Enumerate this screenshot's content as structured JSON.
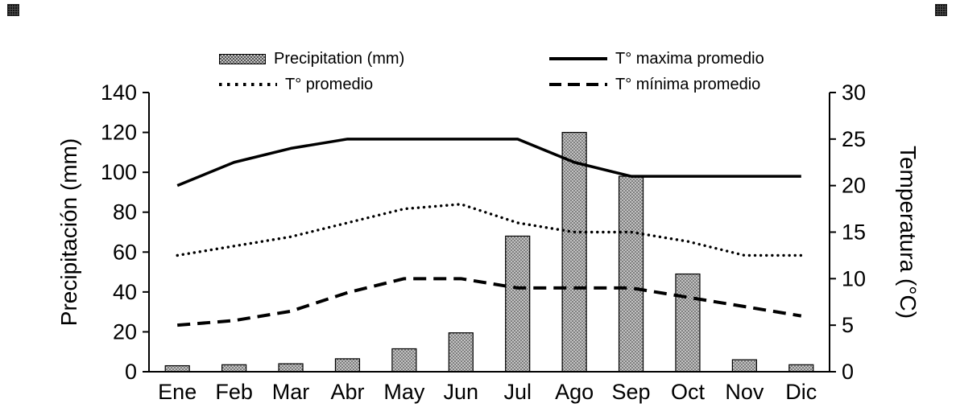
{
  "chart_data": {
    "type": "bar",
    "categories": [
      "Ene",
      "Feb",
      "Mar",
      "Abr",
      "May",
      "Jun",
      "Jul",
      "Ago",
      "Sep",
      "Oct",
      "Nov",
      "Dic"
    ],
    "bar_series": {
      "name": "Precipitation (mm)",
      "axis": "left",
      "values": [
        3,
        3.5,
        4,
        6.5,
        11.5,
        19.5,
        68,
        120,
        98,
        49,
        6,
        3.5
      ]
    },
    "line_series": [
      {
        "name": "T° maxima promedio",
        "style": "solid",
        "axis": "right",
        "values": [
          20,
          22.5,
          24,
          25,
          25,
          25,
          25,
          22.5,
          21,
          21,
          21,
          21
        ]
      },
      {
        "name": "T° promedio",
        "style": "dotted",
        "axis": "right",
        "values": [
          12.5,
          13.5,
          14.5,
          16,
          17.5,
          18,
          16,
          15,
          15,
          14,
          12.5,
          12.5
        ]
      },
      {
        "name": "T° mínima promedio",
        "style": "dashed",
        "axis": "right",
        "values": [
          5,
          5.5,
          6.5,
          8.5,
          10,
          10,
          9,
          9,
          9,
          8,
          7,
          6
        ]
      }
    ],
    "left_axis": {
      "label": "Precipitación (mm)",
      "min": 0,
      "max": 140,
      "step": 20
    },
    "right_axis": {
      "label": "Temperatura (°C)",
      "min": 0,
      "max": 30,
      "step": 5
    },
    "legend": {
      "position": "top",
      "items": [
        {
          "label": "Precipitation (mm)",
          "swatch": "bar"
        },
        {
          "label": "T° maxima promedio",
          "swatch": "solid"
        },
        {
          "label": "T° promedio",
          "swatch": "dotted"
        },
        {
          "label": "T° mínima promedio",
          "swatch": "dashed"
        }
      ]
    },
    "grid": "off",
    "colors": {
      "bar_fill": "#c2c2c2",
      "bar_dot": "#303030",
      "line": "#000000",
      "background": "#ffffff"
    }
  }
}
